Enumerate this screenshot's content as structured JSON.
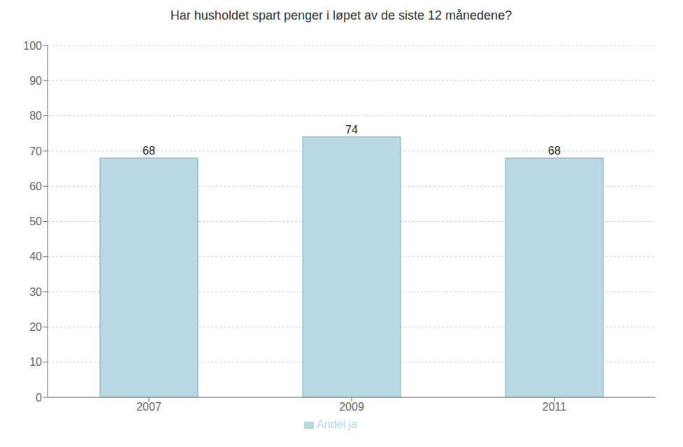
{
  "chart_data": {
    "type": "bar",
    "title": "Har husholdet spart penger i løpet av de siste 12 månedene?",
    "categories": [
      "2007",
      "2009",
      "2011"
    ],
    "series": [
      {
        "name": "Andel ja",
        "color": "#b8d8e4",
        "values": [
          68,
          74,
          68
        ]
      }
    ],
    "ylim": [
      0,
      100
    ],
    "yticks": [
      0,
      10,
      20,
      30,
      40,
      50,
      60,
      70,
      80,
      90,
      100
    ],
    "grid": true,
    "legend": "bottom",
    "data_labels": true
  }
}
